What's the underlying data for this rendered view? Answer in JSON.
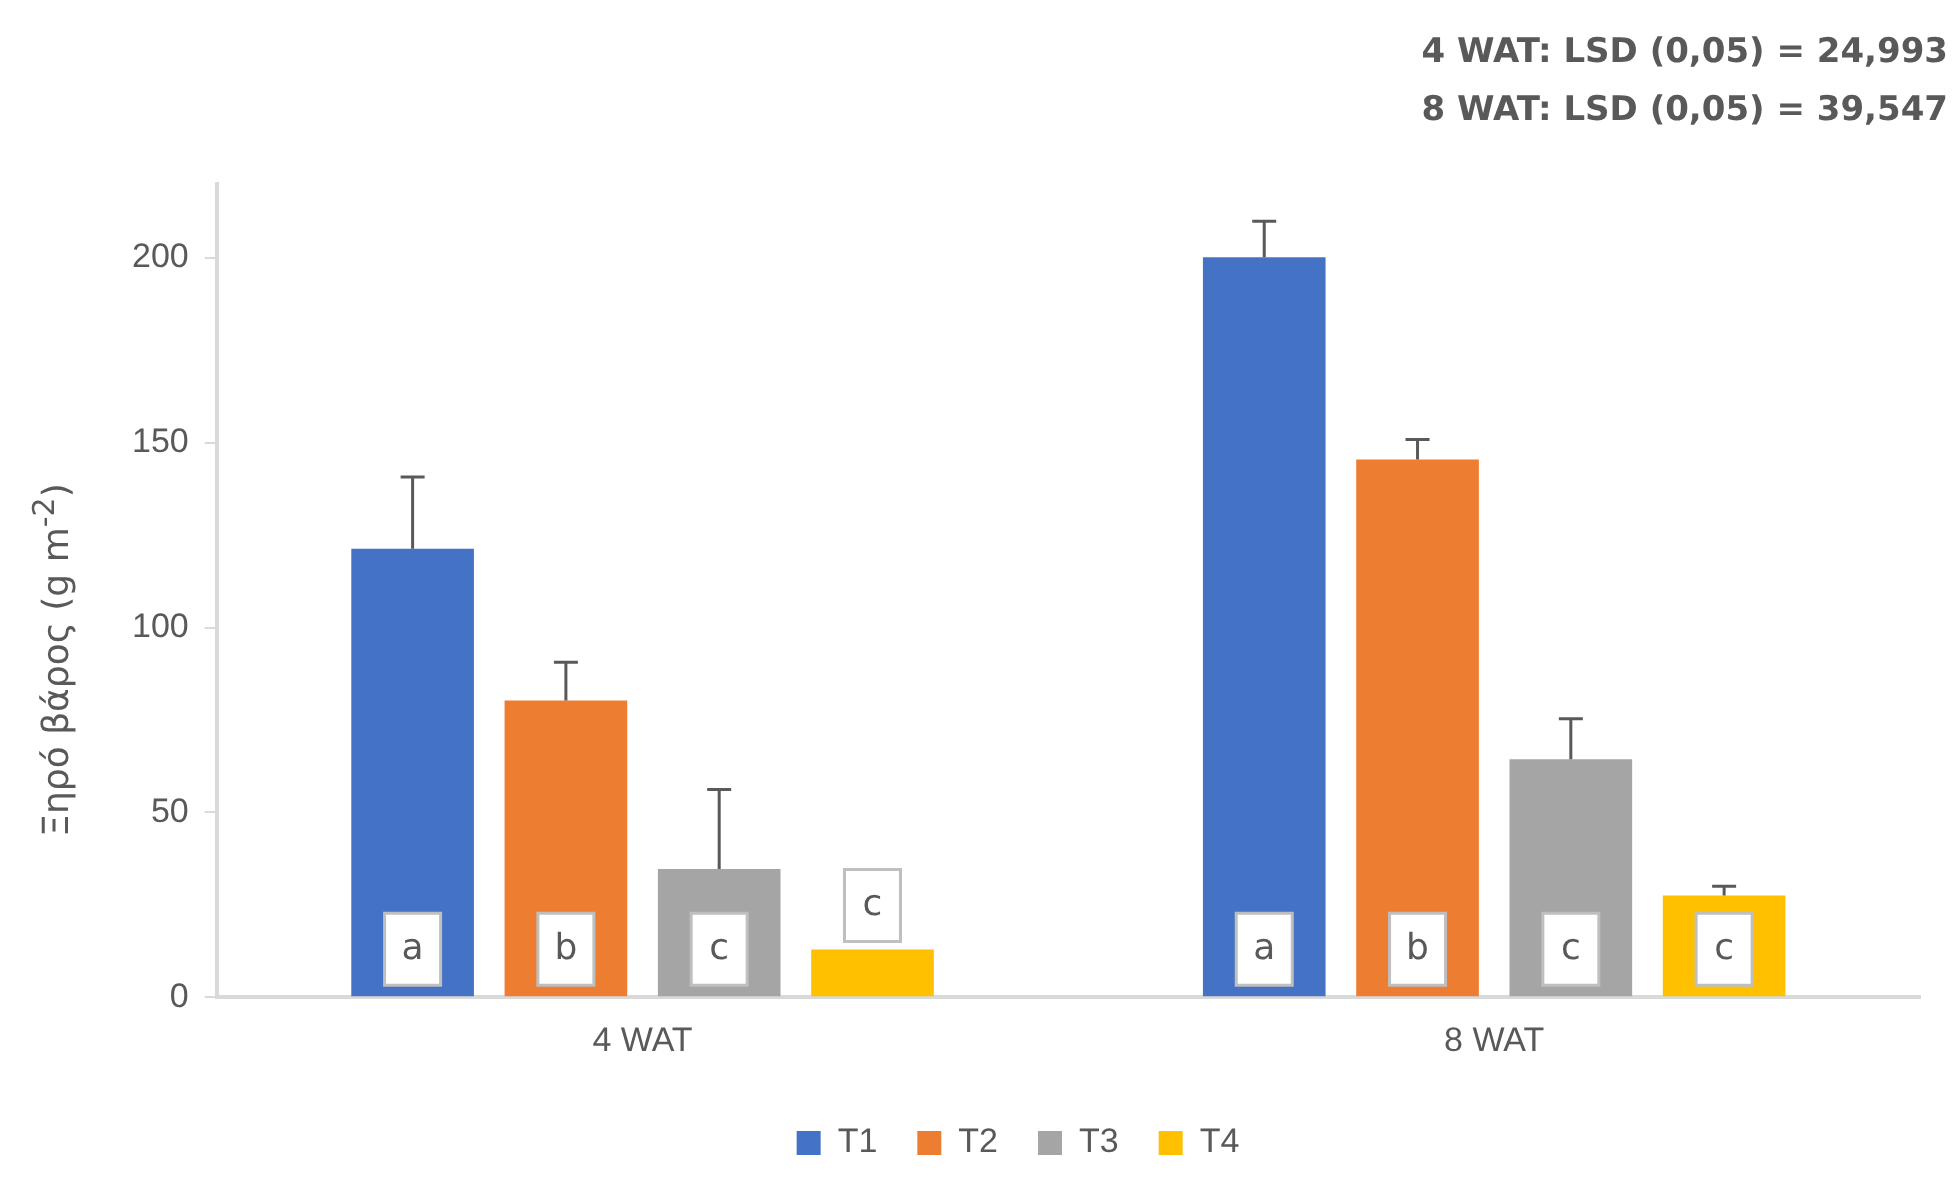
{
  "chart_data": {
    "type": "bar",
    "categories": [
      "4 WAT",
      "8 WAT"
    ],
    "series": [
      {
        "name": "T1",
        "color": "#4472c4",
        "values": [
          121.3,
          200.2
        ],
        "errors": [
          [
            121.3,
            140.7
          ],
          [
            200.2,
            209.9
          ]
        ],
        "value_labels": [
          "a",
          "a"
        ]
      },
      {
        "name": "T2",
        "color": "#ed7d31",
        "values": [
          80.3,
          145.5
        ],
        "errors": [
          [
            80.3,
            90.6
          ],
          [
            145.5,
            150.9
          ]
        ],
        "value_labels": [
          "b",
          "b"
        ]
      },
      {
        "name": "T3",
        "color": "#a5a5a5",
        "values": [
          34.7,
          64.4
        ],
        "errors": [
          [
            34.7,
            56.2
          ],
          [
            64.4,
            75.3
          ]
        ],
        "value_labels": [
          "c",
          "c"
        ]
      },
      {
        "name": "T4",
        "color": "#ffc000",
        "values": [
          12.9,
          27.5
        ],
        "errors": [
          null,
          [
            27.5,
            30
          ]
        ],
        "value_labels": [
          "c",
          "c"
        ]
      }
    ],
    "ylabel": "Ξηρό βάρος (g m$^{-2}$)",
    "ylim": [
      0,
      220
    ],
    "yticks": [
      0,
      50,
      100,
      150,
      200
    ],
    "grid": false,
    "legend": "bottom",
    "annotations": [
      "4 WAT: LSD (0,05) = 24,993",
      "8 WAT: LSD (0,05) = 39,547"
    ]
  }
}
